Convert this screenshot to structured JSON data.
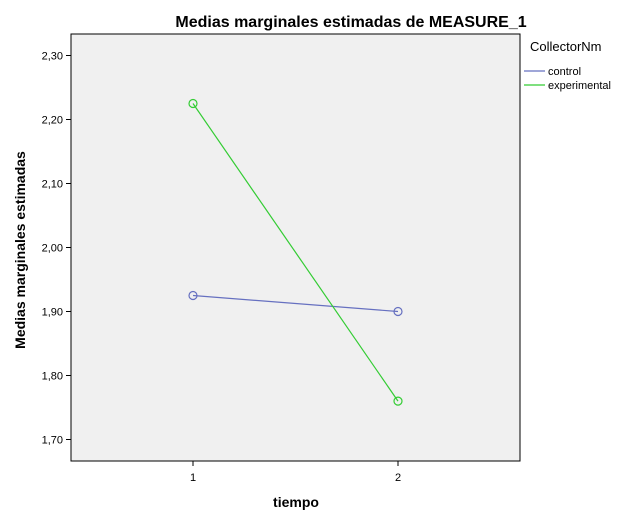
{
  "chart_data": {
    "type": "line",
    "title": "Medias marginales estimadas de MEASURE_1",
    "xlabel": "tiempo",
    "ylabel": "Medias marginales estimadas",
    "categories": [
      "1",
      "2"
    ],
    "ylim": [
      1.6664,
      2.3336
    ],
    "yticks": [
      1.7,
      1.8,
      1.9,
      2.0,
      2.1,
      2.2,
      2.3
    ],
    "ytick_labels": [
      "1,70",
      "1,80",
      "1,90",
      "2,00",
      "2,10",
      "2,20",
      "2,30"
    ],
    "grid": false,
    "plot_background": "#f0f0f0",
    "legend": {
      "title": "CollectorNm",
      "placement": "right"
    },
    "series": [
      {
        "name": "control",
        "values": [
          1.925,
          1.9
        ],
        "color": "#6670c0",
        "marker": "circle-open"
      },
      {
        "name": "experimental",
        "values": [
          2.225,
          1.76
        ],
        "color": "#33cc33",
        "marker": "circle-open"
      }
    ]
  }
}
